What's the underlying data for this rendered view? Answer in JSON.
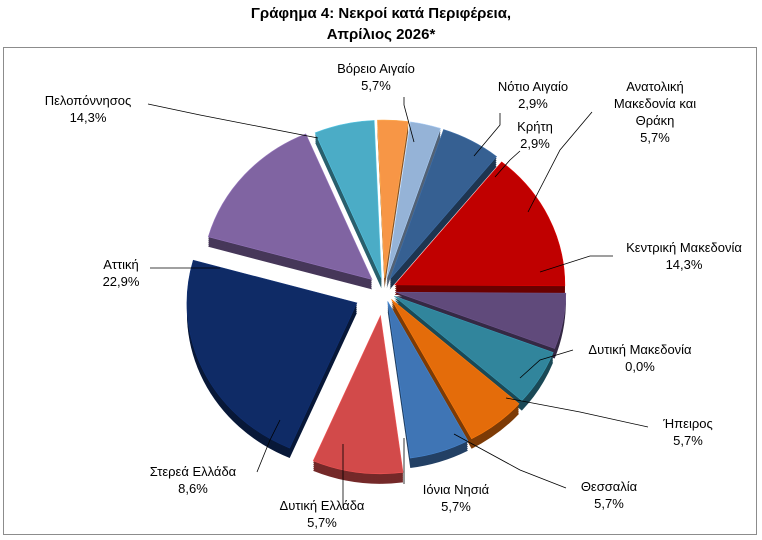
{
  "chart_data": {
    "type": "pie",
    "title_line1": "Γράφημα 4: Νεκροί κατά Περιφέρεια,",
    "title_line2": "Απρίλιος 2026*",
    "slices": [
      {
        "name": "Βόρειο Αιγαίο",
        "value": 5.7,
        "label": "5,7%",
        "color": "#4bacc6"
      },
      {
        "name": "Νότιο Αιγαίο",
        "value": 2.9,
        "label": "2,9%",
        "color": "#f79646"
      },
      {
        "name": "Κρήτη",
        "value": 2.9,
        "label": "2,9%",
        "color": "#95b3d7"
      },
      {
        "name": "Ανατολική Μακεδονία και Θράκη",
        "value": 5.7,
        "label": "5,7%",
        "color": "#366092"
      },
      {
        "name": "Κεντρική Μακεδονία",
        "value": 14.3,
        "label": "14,3%",
        "color": "#c00000"
      },
      {
        "name": "Δυτική Μακεδονία",
        "value": 0.0,
        "label": "0,0%",
        "color": "#4f81bd"
      },
      {
        "name": "Ήπειρος",
        "value": 5.7,
        "label": "5,7%",
        "color": "#604a7b"
      },
      {
        "name": "Θεσσαλία",
        "value": 5.7,
        "label": "5,7%",
        "color": "#31859c"
      },
      {
        "name": "Ιόνια Νησιά",
        "value": 5.7,
        "label": "5,7%",
        "color": "#e46c0a"
      },
      {
        "name": "Δυτική Ελλάδα",
        "value": 5.7,
        "label": "5,7%",
        "color": "#3f75b5"
      },
      {
        "name": "Στερεά Ελλάδα",
        "value": 8.6,
        "label": "8,6%",
        "color": "#d24a4a"
      },
      {
        "name": "Αττική",
        "value": 22.9,
        "label": "22,9%",
        "color": "#0f2b66"
      },
      {
        "name": "Πελοπόννησος",
        "value": 14.3,
        "label": "14,3%",
        "color": "#8064a2"
      }
    ]
  }
}
